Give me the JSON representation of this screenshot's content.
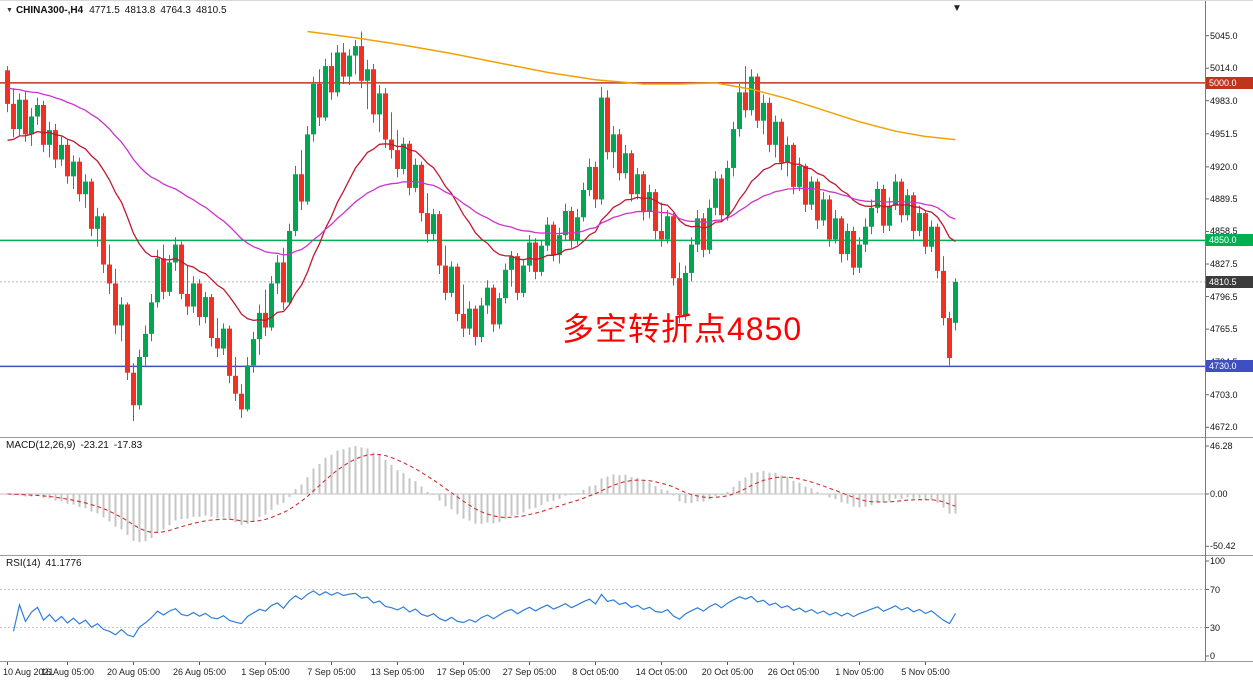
{
  "topbar": {
    "dropdown_icon": "▼",
    "symbol_period": "CHINA300-,H4",
    "open": "4771.5",
    "high": "4813.8",
    "low": "4764.3",
    "close": "4810.5"
  },
  "annotation": {
    "text": "多空转折点4850",
    "color": "#FF0000"
  },
  "chart_data": {
    "type": "candlestick",
    "symbol": "CHINA300-",
    "timeframe": "H4",
    "ohlc_current": {
      "open": 4771.5,
      "high": 4813.8,
      "low": 4764.3,
      "close": 4810.5
    },
    "colors": {
      "up": "#00A651",
      "down": "#EF3124",
      "background": "#FFFFFF",
      "axis_text": "#111111"
    },
    "candles": [
      [
        5012,
        5016,
        4972,
        4980
      ],
      [
        4980,
        4995,
        4948,
        4956
      ],
      [
        4956,
        4990,
        4950,
        4984
      ],
      [
        4984,
        4992,
        4944,
        4951
      ],
      [
        4951,
        4976,
        4940,
        4968
      ],
      [
        4968,
        4986,
        4960,
        4979
      ],
      [
        4979,
        4983,
        4934,
        4941
      ],
      [
        4941,
        4963,
        4929,
        4955
      ],
      [
        4955,
        4961,
        4919,
        4927
      ],
      [
        4927,
        4949,
        4921,
        4941
      ],
      [
        4941,
        4946,
        4904,
        4911
      ],
      [
        4911,
        4931,
        4899,
        4925
      ],
      [
        4925,
        4929,
        4887,
        4894
      ],
      [
        4894,
        4913,
        4881,
        4906
      ],
      [
        4906,
        4909,
        4854,
        4861
      ],
      [
        4861,
        4881,
        4844,
        4873
      ],
      [
        4873,
        4876,
        4819,
        4827
      ],
      [
        4827,
        4846,
        4799,
        4809
      ],
      [
        4809,
        4823,
        4761,
        4769
      ],
      [
        4769,
        4796,
        4754,
        4789
      ],
      [
        4789,
        4791,
        4717,
        4724
      ],
      [
        4724,
        4733,
        4678,
        4693
      ],
      [
        4693,
        4746,
        4689,
        4739
      ],
      [
        4739,
        4769,
        4731,
        4761
      ],
      [
        4761,
        4799,
        4754,
        4791
      ],
      [
        4791,
        4841,
        4786,
        4833
      ],
      [
        4833,
        4846,
        4794,
        4801
      ],
      [
        4801,
        4836,
        4797,
        4829
      ],
      [
        4829,
        4853,
        4821,
        4846
      ],
      [
        4846,
        4849,
        4794,
        4799
      ],
      [
        4799,
        4826,
        4779,
        4787
      ],
      [
        4787,
        4816,
        4781,
        4809
      ],
      [
        4809,
        4813,
        4769,
        4777
      ],
      [
        4777,
        4801,
        4771,
        4796
      ],
      [
        4796,
        4799,
        4749,
        4757
      ],
      [
        4757,
        4776,
        4739,
        4747
      ],
      [
        4747,
        4771,
        4741,
        4766
      ],
      [
        4766,
        4769,
        4714,
        4721
      ],
      [
        4721,
        4739,
        4697,
        4704
      ],
      [
        4704,
        4713,
        4681,
        4689
      ],
      [
        4689,
        4739,
        4687,
        4731
      ],
      [
        4731,
        4763,
        4724,
        4756
      ],
      [
        4756,
        4789,
        4741,
        4781
      ],
      [
        4781,
        4803,
        4759,
        4767
      ],
      [
        4767,
        4816,
        4764,
        4809
      ],
      [
        4809,
        4836,
        4799,
        4829
      ],
      [
        4829,
        4843,
        4784,
        4791
      ],
      [
        4791,
        4866,
        4789,
        4859
      ],
      [
        4859,
        4921,
        4854,
        4913
      ],
      [
        4913,
        4936,
        4879,
        4887
      ],
      [
        4887,
        4959,
        4884,
        4951
      ],
      [
        4951,
        5006,
        4944,
        4999
      ],
      [
        4999,
        5013,
        4959,
        4967
      ],
      [
        4967,
        5023,
        4964,
        5016
      ],
      [
        5016,
        5029,
        4984,
        4991
      ],
      [
        4991,
        5036,
        4987,
        5029
      ],
      [
        5029,
        5038,
        4999,
        5006
      ],
      [
        5006,
        5032,
        4998,
        5026
      ],
      [
        5026,
        5041,
        5008,
        5035
      ],
      [
        5035,
        5049,
        4995,
        5002
      ],
      [
        5002,
        5022,
        4975,
        5013
      ],
      [
        5013,
        5018,
        4962,
        4970
      ],
      [
        4970,
        4998,
        4953,
        4990
      ],
      [
        4990,
        4995,
        4938,
        4946
      ],
      [
        4946,
        4972,
        4928,
        4936
      ],
      [
        4936,
        4955,
        4910,
        4918
      ],
      [
        4918,
        4948,
        4913,
        4942
      ],
      [
        4942,
        4945,
        4893,
        4900
      ],
      [
        4900,
        4928,
        4896,
        4922
      ],
      [
        4922,
        4925,
        4868,
        4876
      ],
      [
        4876,
        4895,
        4848,
        4856
      ],
      [
        4856,
        4880,
        4850,
        4875
      ],
      [
        4875,
        4878,
        4818,
        4826
      ],
      [
        4826,
        4845,
        4793,
        4800
      ],
      [
        4800,
        4830,
        4796,
        4825
      ],
      [
        4825,
        4828,
        4773,
        4780
      ],
      [
        4780,
        4808,
        4758,
        4766
      ],
      [
        4766,
        4792,
        4760,
        4785
      ],
      [
        4785,
        4788,
        4750,
        4758
      ],
      [
        4758,
        4795,
        4753,
        4788
      ],
      [
        4788,
        4812,
        4780,
        4805
      ],
      [
        4805,
        4808,
        4763,
        4770
      ],
      [
        4770,
        4800,
        4766,
        4795
      ],
      [
        4795,
        4828,
        4790,
        4822
      ],
      [
        4822,
        4840,
        4806,
        4835
      ],
      [
        4835,
        4838,
        4793,
        4800
      ],
      [
        4800,
        4832,
        4796,
        4826
      ],
      [
        4826,
        4855,
        4820,
        4848
      ],
      [
        4848,
        4852,
        4813,
        4820
      ],
      [
        4820,
        4850,
        4816,
        4845
      ],
      [
        4845,
        4872,
        4840,
        4865
      ],
      [
        4865,
        4868,
        4830,
        4836
      ],
      [
        4836,
        4862,
        4828,
        4855
      ],
      [
        4855,
        4885,
        4850,
        4878
      ],
      [
        4878,
        4882,
        4843,
        4850
      ],
      [
        4850,
        4880,
        4846,
        4872
      ],
      [
        4872,
        4905,
        4868,
        4898
      ],
      [
        4898,
        4928,
        4892,
        4920
      ],
      [
        4920,
        4925,
        4881,
        4889
      ],
      [
        4889,
        4996,
        4884,
        4986
      ],
      [
        4986,
        4993,
        4927,
        4934
      ],
      [
        4934,
        4959,
        4919,
        4951
      ],
      [
        4951,
        4956,
        4907,
        4914
      ],
      [
        4914,
        4941,
        4909,
        4933
      ],
      [
        4933,
        4936,
        4887,
        4894
      ],
      [
        4894,
        4919,
        4889,
        4913
      ],
      [
        4913,
        4916,
        4869,
        4877
      ],
      [
        4877,
        4903,
        4871,
        4896
      ],
      [
        4896,
        4899,
        4851,
        4859
      ],
      [
        4859,
        4886,
        4844,
        4851
      ],
      [
        4851,
        4879,
        4847,
        4873
      ],
      [
        4873,
        4876,
        4807,
        4814
      ],
      [
        4814,
        4829,
        4771,
        4779
      ],
      [
        4779,
        4826,
        4774,
        4819
      ],
      [
        4819,
        4853,
        4811,
        4846
      ],
      [
        4846,
        4879,
        4839,
        4871
      ],
      [
        4871,
        4876,
        4834,
        4841
      ],
      [
        4841,
        4889,
        4837,
        4881
      ],
      [
        4881,
        4916,
        4874,
        4909
      ],
      [
        4909,
        4913,
        4867,
        4874
      ],
      [
        4874,
        4926,
        4869,
        4919
      ],
      [
        4919,
        4963,
        4911,
        4956
      ],
      [
        4956,
        4999,
        4949,
        4991
      ],
      [
        4991,
        5016,
        4967,
        4974
      ],
      [
        4974,
        5013,
        4969,
        5006
      ],
      [
        5006,
        5009,
        4957,
        4964
      ],
      [
        4964,
        4989,
        4951,
        4981
      ],
      [
        4981,
        4986,
        4934,
        4941
      ],
      [
        4941,
        4969,
        4929,
        4963
      ],
      [
        4963,
        4966,
        4917,
        4924
      ],
      [
        4924,
        4949,
        4911,
        4941
      ],
      [
        4941,
        4943,
        4894,
        4901
      ],
      [
        4901,
        4929,
        4897,
        4921
      ],
      [
        4921,
        4923,
        4877,
        4884
      ],
      [
        4884,
        4911,
        4879,
        4906
      ],
      [
        4906,
        4909,
        4861,
        4869
      ],
      [
        4869,
        4896,
        4864,
        4889
      ],
      [
        4889,
        4893,
        4844,
        4851
      ],
      [
        4851,
        4879,
        4847,
        4871
      ],
      [
        4871,
        4873,
        4829,
        4837
      ],
      [
        4837,
        4866,
        4831,
        4859
      ],
      [
        4859,
        4863,
        4817,
        4824
      ],
      [
        4824,
        4853,
        4819,
        4846
      ],
      [
        4846,
        4871,
        4839,
        4863
      ],
      [
        4863,
        4889,
        4856,
        4881
      ],
      [
        4881,
        4906,
        4876,
        4899
      ],
      [
        4899,
        4903,
        4857,
        4864
      ],
      [
        4864,
        4891,
        4859,
        4883
      ],
      [
        4883,
        4913,
        4879,
        4906
      ],
      [
        4906,
        4909,
        4867,
        4874
      ],
      [
        4874,
        4899,
        4869,
        4893
      ],
      [
        4893,
        4896,
        4851,
        4859
      ],
      [
        4859,
        4883,
        4854,
        4876
      ],
      [
        4876,
        4879,
        4837,
        4844
      ],
      [
        4844,
        4869,
        4839,
        4863
      ],
      [
        4863,
        4866,
        4814,
        4821
      ],
      [
        4821,
        4835,
        4769,
        4776
      ],
      [
        4776,
        4782,
        4731,
        4738
      ],
      [
        4771.5,
        4813.8,
        4764.3,
        4810.5
      ]
    ],
    "x_axis": {
      "labels": [
        "10 Aug 2021",
        "16 Aug 05:00",
        "20 Aug 05:00",
        "26 Aug 05:00",
        "1 Sep 05:00",
        "7 Sep 05:00",
        "13 Sep 05:00",
        "17 Sep 05:00",
        "27 Sep 05:00",
        "8 Oct 05:00",
        "14 Oct 05:00",
        "20 Oct 05:00",
        "26 Oct 05:00",
        "1 Nov 05:00",
        "5 Nov 05:00"
      ],
      "indices": [
        0,
        10,
        21,
        32,
        43,
        54,
        65,
        76,
        87,
        98,
        109,
        120,
        131,
        142,
        153
      ]
    },
    "y_axis": {
      "tick_values": [
        5045.0,
        5014.0,
        4983.0,
        4951.5,
        4920.0,
        4889.5,
        4858.5,
        4827.5,
        4796.5,
        4765.5,
        4734.5,
        4703.0,
        4672.0
      ],
      "tick_labels": [
        "5045.0",
        "5014.0",
        "4983.0",
        "4951.5",
        "4920.0",
        "4889.5",
        "4858.5",
        "4827.5",
        "4796.5",
        "4765.5",
        "4734.5",
        "4703.0",
        "4672.0"
      ],
      "hlines": [
        {
          "name": "resistance",
          "value": 5000,
          "label": "5000.0",
          "color": "#C0341D"
        },
        {
          "name": "pivot",
          "value": 4850,
          "label": "4850.0",
          "color": "#00B050"
        },
        {
          "name": "support",
          "value": 4730,
          "label": "4730.0",
          "color": "#3D4FC1"
        }
      ],
      "current_price": {
        "value": 4810.5,
        "label": "4810.5",
        "color": "#3C3C3C",
        "line_color": "#B8B8B8"
      }
    },
    "moving_averages": [
      {
        "name": "fast",
        "type": "ema",
        "period": 22,
        "color": "#C01830"
      },
      {
        "name": "medium",
        "type": "ema",
        "period": 55,
        "color": "#CC33CC"
      },
      {
        "name": "slow",
        "type": "points",
        "color": "#F2A100",
        "points": [
          [
            50,
            5049
          ],
          [
            58,
            5043
          ],
          [
            66,
            5036
          ],
          [
            74,
            5028
          ],
          [
            82,
            5019
          ],
          [
            90,
            5010
          ],
          [
            98,
            5003
          ],
          [
            106,
            4999
          ],
          [
            112,
            4999
          ],
          [
            118,
            5000
          ],
          [
            124,
            4994
          ],
          [
            130,
            4985
          ],
          [
            136,
            4974
          ],
          [
            142,
            4963
          ],
          [
            148,
            4954
          ],
          [
            153,
            4949
          ],
          [
            158,
            4946
          ]
        ]
      }
    ],
    "indicators": {
      "macd": {
        "label": "MACD(12,26,9)",
        "value_main": "-23.21",
        "value_signal": "-17.83",
        "params": [
          12,
          26,
          9
        ],
        "scale_labels": [
          "46.28",
          "0.00",
          "-50.42"
        ],
        "scale_values": [
          46.28,
          0,
          -50.42
        ],
        "histogram_color": "#C6C6C6",
        "histogram_border": "#9A9A9A",
        "signal_color": "#CC3333"
      },
      "rsi": {
        "label": "RSI(14)",
        "value": "41.1776",
        "period": 14,
        "scale_labels": [
          "100",
          "70",
          "30",
          "0"
        ],
        "scale_values": [
          100,
          70,
          30,
          0
        ],
        "levels": [
          70,
          30
        ],
        "color": "#2F7ED8"
      }
    }
  }
}
